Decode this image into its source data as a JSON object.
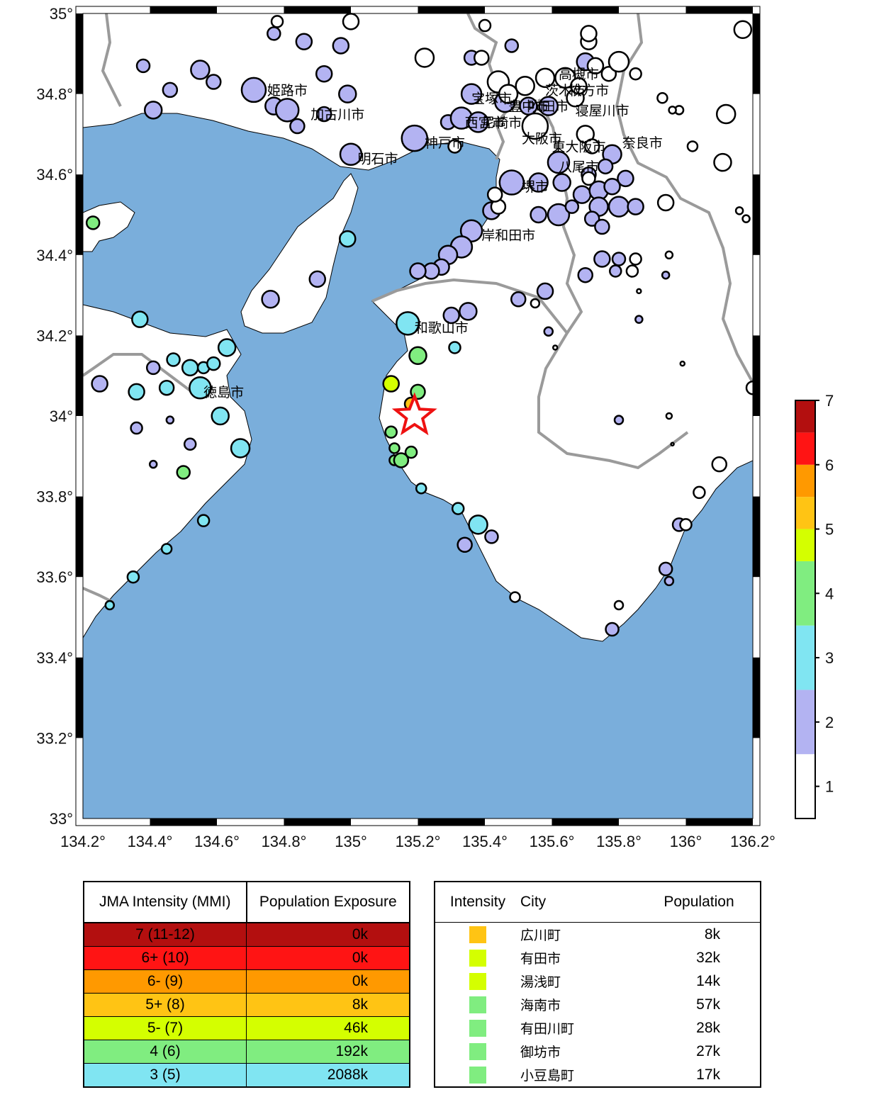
{
  "map": {
    "lon_ticks": [
      "134.2°",
      "134.4°",
      "134.6°",
      "134.8°",
      "135°",
      "135.2°",
      "135.4°",
      "135.6°",
      "135.8°",
      "136°",
      "136.2°"
    ],
    "lat_ticks": [
      "35°",
      "34.8°",
      "34.6°",
      "34.4°",
      "34.2°",
      "34°",
      "33.8°",
      "33.6°",
      "33.4°",
      "33.2°",
      "33°"
    ],
    "lon_range": [
      134.2,
      136.2
    ],
    "lat_range": [
      33.0,
      35.0
    ],
    "epicenter": {
      "lon": 135.19,
      "lat": 34.0
    },
    "water_color": "#7aaedb",
    "land_color": "#ffffff",
    "cities": [
      {
        "name": "姫路市",
        "lon": 134.75,
        "lat": 34.81
      },
      {
        "name": "加古川市",
        "lon": 134.88,
        "lat": 34.75
      },
      {
        "name": "明石市",
        "lon": 135.02,
        "lat": 34.64
      },
      {
        "name": "神戸市",
        "lon": 135.22,
        "lat": 34.68
      },
      {
        "name": "宝塚市",
        "lon": 135.36,
        "lat": 34.79
      },
      {
        "name": "豊中市",
        "lon": 135.47,
        "lat": 34.77
      },
      {
        "name": "西宮市",
        "lon": 135.34,
        "lat": 34.73
      },
      {
        "name": "尼崎市",
        "lon": 135.39,
        "lat": 34.73
      },
      {
        "name": "吹田市",
        "lon": 135.53,
        "lat": 34.77
      },
      {
        "name": "茨木市",
        "lon": 135.58,
        "lat": 34.81
      },
      {
        "name": "高槻市",
        "lon": 135.62,
        "lat": 34.85
      },
      {
        "name": "枚方市",
        "lon": 135.65,
        "lat": 34.81
      },
      {
        "name": "寝屋川市",
        "lon": 135.67,
        "lat": 34.76
      },
      {
        "name": "大阪市",
        "lon": 135.51,
        "lat": 34.69
      },
      {
        "name": "東大阪市",
        "lon": 135.6,
        "lat": 34.67
      },
      {
        "name": "奈良市",
        "lon": 135.81,
        "lat": 34.68
      },
      {
        "name": "八尾市",
        "lon": 135.62,
        "lat": 34.62
      },
      {
        "name": "堺市",
        "lon": 135.51,
        "lat": 34.57
      },
      {
        "name": "岸和田市",
        "lon": 135.39,
        "lat": 34.45
      },
      {
        "name": "和歌山市",
        "lon": 135.19,
        "lat": 34.22
      },
      {
        "name": "徳島市",
        "lon": 134.56,
        "lat": 34.06
      }
    ],
    "stations": [
      {
        "lon": 134.38,
        "lat": 34.87,
        "r": 9,
        "c": 2
      },
      {
        "lon": 134.55,
        "lat": 34.86,
        "r": 13,
        "c": 2
      },
      {
        "lon": 134.59,
        "lat": 34.83,
        "r": 10,
        "c": 2
      },
      {
        "lon": 134.46,
        "lat": 34.81,
        "r": 10,
        "c": 2
      },
      {
        "lon": 134.41,
        "lat": 34.76,
        "r": 12,
        "c": 2
      },
      {
        "lon": 134.71,
        "lat": 34.81,
        "r": 17,
        "c": 2
      },
      {
        "lon": 134.77,
        "lat": 34.77,
        "r": 12,
        "c": 2
      },
      {
        "lon": 134.81,
        "lat": 34.76,
        "r": 16,
        "c": 2
      },
      {
        "lon": 134.84,
        "lat": 34.72,
        "r": 10,
        "c": 2
      },
      {
        "lon": 134.86,
        "lat": 34.93,
        "r": 11,
        "c": 2
      },
      {
        "lon": 134.77,
        "lat": 34.95,
        "r": 9,
        "c": 2
      },
      {
        "lon": 134.92,
        "lat": 34.85,
        "r": 11,
        "c": 2
      },
      {
        "lon": 134.97,
        "lat": 34.92,
        "r": 11,
        "c": 2
      },
      {
        "lon": 134.99,
        "lat": 34.8,
        "r": 12,
        "c": 2
      },
      {
        "lon": 134.92,
        "lat": 34.75,
        "r": 10,
        "c": 2
      },
      {
        "lon": 135.0,
        "lat": 34.65,
        "r": 15,
        "c": 2
      },
      {
        "lon": 135.19,
        "lat": 34.69,
        "r": 18,
        "c": 2
      },
      {
        "lon": 135.29,
        "lat": 34.73,
        "r": 10,
        "c": 2
      },
      {
        "lon": 135.33,
        "lat": 34.74,
        "r": 15,
        "c": 2
      },
      {
        "lon": 135.36,
        "lat": 34.8,
        "r": 14,
        "c": 2
      },
      {
        "lon": 135.38,
        "lat": 34.73,
        "r": 14,
        "c": 2
      },
      {
        "lon": 135.46,
        "lat": 34.78,
        "r": 14,
        "c": 2
      },
      {
        "lon": 135.53,
        "lat": 34.77,
        "r": 12,
        "c": 2
      },
      {
        "lon": 135.59,
        "lat": 34.77,
        "r": 13,
        "c": 2
      },
      {
        "lon": 135.48,
        "lat": 34.58,
        "r": 17,
        "c": 2
      },
      {
        "lon": 135.56,
        "lat": 34.58,
        "r": 13,
        "c": 2
      },
      {
        "lon": 135.62,
        "lat": 34.63,
        "r": 15,
        "c": 2
      },
      {
        "lon": 135.63,
        "lat": 34.58,
        "r": 12,
        "c": 2
      },
      {
        "lon": 135.62,
        "lat": 34.5,
        "r": 15,
        "c": 2
      },
      {
        "lon": 135.56,
        "lat": 34.5,
        "r": 11,
        "c": 2
      },
      {
        "lon": 135.66,
        "lat": 34.52,
        "r": 9,
        "c": 2
      },
      {
        "lon": 135.69,
        "lat": 34.55,
        "r": 12,
        "c": 2
      },
      {
        "lon": 135.71,
        "lat": 34.6,
        "r": 10,
        "c": 2
      },
      {
        "lon": 135.74,
        "lat": 34.56,
        "r": 13,
        "c": 2
      },
      {
        "lon": 135.78,
        "lat": 34.57,
        "r": 11,
        "c": 2
      },
      {
        "lon": 135.8,
        "lat": 34.52,
        "r": 14,
        "c": 2
      },
      {
        "lon": 135.74,
        "lat": 34.52,
        "r": 13,
        "c": 2
      },
      {
        "lon": 135.72,
        "lat": 34.49,
        "r": 10,
        "c": 2
      },
      {
        "lon": 135.75,
        "lat": 34.47,
        "r": 10,
        "c": 2
      },
      {
        "lon": 135.82,
        "lat": 34.59,
        "r": 11,
        "c": 2
      },
      {
        "lon": 135.85,
        "lat": 34.52,
        "r": 11,
        "c": 2
      },
      {
        "lon": 135.78,
        "lat": 34.65,
        "r": 13,
        "c": 2
      },
      {
        "lon": 135.76,
        "lat": 34.62,
        "r": 10,
        "c": 2
      },
      {
        "lon": 135.7,
        "lat": 34.88,
        "r": 12,
        "c": 2
      },
      {
        "lon": 135.48,
        "lat": 34.92,
        "r": 9,
        "c": 2
      },
      {
        "lon": 135.36,
        "lat": 34.89,
        "r": 10,
        "c": 2
      },
      {
        "lon": 135.42,
        "lat": 34.51,
        "r": 12,
        "c": 2
      },
      {
        "lon": 135.36,
        "lat": 34.46,
        "r": 15,
        "c": 2
      },
      {
        "lon": 135.33,
        "lat": 34.42,
        "r": 15,
        "c": 2
      },
      {
        "lon": 135.29,
        "lat": 34.4,
        "r": 13,
        "c": 2
      },
      {
        "lon": 135.27,
        "lat": 34.37,
        "r": 11,
        "c": 2
      },
      {
        "lon": 135.24,
        "lat": 34.36,
        "r": 11,
        "c": 2
      },
      {
        "lon": 135.5,
        "lat": 34.29,
        "r": 10,
        "c": 2
      },
      {
        "lon": 135.58,
        "lat": 34.31,
        "r": 11,
        "c": 2
      },
      {
        "lon": 135.7,
        "lat": 34.35,
        "r": 10,
        "c": 2
      },
      {
        "lon": 135.75,
        "lat": 34.39,
        "r": 11,
        "c": 2
      },
      {
        "lon": 135.3,
        "lat": 34.25,
        "r": 11,
        "c": 2
      },
      {
        "lon": 135.35,
        "lat": 34.26,
        "r": 12,
        "c": 2
      },
      {
        "lon": 135.2,
        "lat": 34.36,
        "r": 11,
        "c": 2
      },
      {
        "lon": 134.99,
        "lat": 34.44,
        "r": 11,
        "c": 3
      },
      {
        "lon": 134.9,
        "lat": 34.34,
        "r": 11,
        "c": 2
      },
      {
        "lon": 134.76,
        "lat": 34.29,
        "r": 12,
        "c": 2
      },
      {
        "lon": 134.37,
        "lat": 34.24,
        "r": 11,
        "c": 3
      },
      {
        "lon": 134.63,
        "lat": 34.17,
        "r": 12,
        "c": 3
      },
      {
        "lon": 134.47,
        "lat": 34.14,
        "r": 9,
        "c": 3
      },
      {
        "lon": 134.52,
        "lat": 34.12,
        "r": 11,
        "c": 3
      },
      {
        "lon": 134.56,
        "lat": 34.12,
        "r": 8,
        "c": 3
      },
      {
        "lon": 134.59,
        "lat": 34.13,
        "r": 9,
        "c": 3
      },
      {
        "lon": 134.41,
        "lat": 34.12,
        "r": 9,
        "c": 2
      },
      {
        "lon": 134.25,
        "lat": 34.08,
        "r": 11,
        "c": 2
      },
      {
        "lon": 134.36,
        "lat": 34.06,
        "r": 11,
        "c": 3
      },
      {
        "lon": 134.45,
        "lat": 34.07,
        "r": 10,
        "c": 3
      },
      {
        "lon": 134.55,
        "lat": 34.07,
        "r": 15,
        "c": 3
      },
      {
        "lon": 134.61,
        "lat": 34.0,
        "r": 12,
        "c": 3
      },
      {
        "lon": 134.67,
        "lat": 33.92,
        "r": 13,
        "c": 3
      },
      {
        "lon": 134.36,
        "lat": 33.97,
        "r": 8,
        "c": 2
      },
      {
        "lon": 134.46,
        "lat": 33.99,
        "r": 5,
        "c": 2
      },
      {
        "lon": 134.52,
        "lat": 33.93,
        "r": 8,
        "c": 2
      },
      {
        "lon": 134.41,
        "lat": 33.88,
        "r": 5,
        "c": 2
      },
      {
        "lon": 134.5,
        "lat": 33.86,
        "r": 9,
        "c": 4
      },
      {
        "lon": 134.56,
        "lat": 33.74,
        "r": 8,
        "c": 3
      },
      {
        "lon": 134.45,
        "lat": 33.67,
        "r": 7,
        "c": 3
      },
      {
        "lon": 134.35,
        "lat": 33.6,
        "r": 8,
        "c": 3
      },
      {
        "lon": 134.28,
        "lat": 33.53,
        "r": 6,
        "c": 3
      },
      {
        "lon": 134.23,
        "lat": 34.48,
        "r": 9,
        "c": 4
      },
      {
        "lon": 135.17,
        "lat": 34.23,
        "r": 16,
        "c": 3
      },
      {
        "lon": 135.2,
        "lat": 34.15,
        "r": 12,
        "c": 4
      },
      {
        "lon": 135.31,
        "lat": 34.17,
        "r": 8,
        "c": 3
      },
      {
        "lon": 135.12,
        "lat": 34.08,
        "r": 11,
        "c": 5
      },
      {
        "lon": 135.2,
        "lat": 34.06,
        "r": 10,
        "c": 4
      },
      {
        "lon": 135.18,
        "lat": 34.03,
        "r": 9,
        "c": 5.5
      },
      {
        "lon": 135.12,
        "lat": 33.96,
        "r": 8,
        "c": 4
      },
      {
        "lon": 135.13,
        "lat": 33.92,
        "r": 7,
        "c": 4
      },
      {
        "lon": 135.18,
        "lat": 33.91,
        "r": 8,
        "c": 4
      },
      {
        "lon": 135.13,
        "lat": 33.89,
        "r": 7,
        "c": 4
      },
      {
        "lon": 135.15,
        "lat": 33.89,
        "r": 10,
        "c": 4
      },
      {
        "lon": 135.21,
        "lat": 33.82,
        "r": 7,
        "c": 3
      },
      {
        "lon": 135.32,
        "lat": 33.77,
        "r": 8,
        "c": 3
      },
      {
        "lon": 135.38,
        "lat": 33.73,
        "r": 13,
        "c": 3
      },
      {
        "lon": 135.34,
        "lat": 33.68,
        "r": 10,
        "c": 2
      },
      {
        "lon": 135.42,
        "lat": 33.7,
        "r": 9,
        "c": 2
      },
      {
        "lon": 135.59,
        "lat": 34.21,
        "r": 6,
        "c": 2
      },
      {
        "lon": 135.55,
        "lat": 34.28,
        "r": 6,
        "c": 1
      },
      {
        "lon": 135.61,
        "lat": 34.17,
        "r": 3,
        "c": 1
      },
      {
        "lon": 135.86,
        "lat": 34.31,
        "r": 3,
        "c": 1
      },
      {
        "lon": 135.84,
        "lat": 34.36,
        "r": 8,
        "c": 1
      },
      {
        "lon": 135.85,
        "lat": 34.39,
        "r": 8,
        "c": 1
      },
      {
        "lon": 135.8,
        "lat": 34.39,
        "r": 9,
        "c": 2
      },
      {
        "lon": 135.79,
        "lat": 34.36,
        "r": 8,
        "c": 2
      },
      {
        "lon": 135.86,
        "lat": 34.24,
        "r": 5,
        "c": 2
      },
      {
        "lon": 135.94,
        "lat": 34.35,
        "r": 5,
        "c": 2
      },
      {
        "lon": 135.95,
        "lat": 34.4,
        "r": 5,
        "c": 1
      },
      {
        "lon": 135.8,
        "lat": 33.99,
        "r": 6,
        "c": 2
      },
      {
        "lon": 135.95,
        "lat": 34.0,
        "r": 4,
        "c": 1
      },
      {
        "lon": 135.99,
        "lat": 34.13,
        "r": 3,
        "c": 1
      },
      {
        "lon": 135.96,
        "lat": 33.93,
        "r": 2,
        "c": 1
      },
      {
        "lon": 136.2,
        "lat": 34.07,
        "r": 9,
        "c": 1
      },
      {
        "lon": 136.1,
        "lat": 33.88,
        "r": 10,
        "c": 1
      },
      {
        "lon": 136.04,
        "lat": 33.81,
        "r": 8,
        "c": 1
      },
      {
        "lon": 135.98,
        "lat": 33.73,
        "r": 9,
        "c": 2
      },
      {
        "lon": 136.0,
        "lat": 33.73,
        "r": 8,
        "c": 1
      },
      {
        "lon": 135.94,
        "lat": 33.62,
        "r": 9,
        "c": 2
      },
      {
        "lon": 135.95,
        "lat": 33.59,
        "r": 6,
        "c": 2
      },
      {
        "lon": 135.8,
        "lat": 33.53,
        "r": 6,
        "c": 1
      },
      {
        "lon": 135.78,
        "lat": 33.47,
        "r": 9,
        "c": 2
      },
      {
        "lon": 135.49,
        "lat": 33.55,
        "r": 7,
        "c": 1
      },
      {
        "lon": 135.39,
        "lat": 34.89,
        "r": 10,
        "c": 1
      },
      {
        "lon": 135.44,
        "lat": 34.83,
        "r": 15,
        "c": 1
      },
      {
        "lon": 135.47,
        "lat": 34.8,
        "r": 13,
        "c": 1
      },
      {
        "lon": 135.52,
        "lat": 34.82,
        "r": 13,
        "c": 1
      },
      {
        "lon": 135.55,
        "lat": 34.72,
        "r": 18,
        "c": 1
      },
      {
        "lon": 135.58,
        "lat": 34.84,
        "r": 13,
        "c": 1
      },
      {
        "lon": 135.64,
        "lat": 34.84,
        "r": 14,
        "c": 1
      },
      {
        "lon": 135.67,
        "lat": 34.79,
        "r": 12,
        "c": 1
      },
      {
        "lon": 135.7,
        "lat": 34.7,
        "r": 12,
        "c": 1
      },
      {
        "lon": 135.72,
        "lat": 34.67,
        "r": 10,
        "c": 1
      },
      {
        "lon": 135.73,
        "lat": 34.87,
        "r": 11,
        "c": 1
      },
      {
        "lon": 135.77,
        "lat": 34.85,
        "r": 10,
        "c": 1
      },
      {
        "lon": 135.8,
        "lat": 34.88,
        "r": 14,
        "c": 1
      },
      {
        "lon": 135.71,
        "lat": 34.93,
        "r": 11,
        "c": 1
      },
      {
        "lon": 135.71,
        "lat": 34.95,
        "r": 11,
        "c": 1
      },
      {
        "lon": 135.68,
        "lat": 34.82,
        "r": 11,
        "c": 1
      },
      {
        "lon": 135.85,
        "lat": 34.85,
        "r": 8,
        "c": 1
      },
      {
        "lon": 135.93,
        "lat": 34.79,
        "r": 7,
        "c": 1
      },
      {
        "lon": 135.98,
        "lat": 34.76,
        "r": 6,
        "c": 1
      },
      {
        "lon": 135.96,
        "lat": 34.76,
        "r": 5,
        "c": 1
      },
      {
        "lon": 136.02,
        "lat": 34.67,
        "r": 7,
        "c": 1
      },
      {
        "lon": 136.12,
        "lat": 34.75,
        "r": 13,
        "c": 1
      },
      {
        "lon": 136.11,
        "lat": 34.63,
        "r": 12,
        "c": 1
      },
      {
        "lon": 136.16,
        "lat": 34.51,
        "r": 5,
        "c": 1
      },
      {
        "lon": 136.18,
        "lat": 34.49,
        "r": 5,
        "c": 1
      },
      {
        "lon": 135.94,
        "lat": 34.53,
        "r": 11,
        "c": 1
      },
      {
        "lon": 135.71,
        "lat": 34.59,
        "r": 9,
        "c": 1
      },
      {
        "lon": 135.44,
        "lat": 34.52,
        "r": 10,
        "c": 1
      },
      {
        "lon": 135.43,
        "lat": 34.55,
        "r": 10,
        "c": 1
      },
      {
        "lon": 135.22,
        "lat": 34.89,
        "r": 13,
        "c": 1
      },
      {
        "lon": 135.0,
        "lat": 34.98,
        "r": 11,
        "c": 1
      },
      {
        "lon": 134.78,
        "lat": 34.98,
        "r": 8,
        "c": 1
      },
      {
        "lon": 135.4,
        "lat": 34.97,
        "r": 8,
        "c": 1
      },
      {
        "lon": 136.17,
        "lat": 34.96,
        "r": 12,
        "c": 1
      },
      {
        "lon": 135.31,
        "lat": 34.67,
        "r": 9,
        "c": 1
      }
    ]
  },
  "colorbar": {
    "labels": [
      "7",
      "6",
      "5",
      "4",
      "3",
      "2",
      "1"
    ],
    "bands": [
      "#ffffff",
      "#b3b3f2",
      "#80e5f2",
      "#80ed80",
      "#d4ff00",
      "#ffc414",
      "#ff9900",
      "#ff1414",
      "#b30f0f"
    ]
  },
  "exposure": {
    "headers": [
      "JMA Intensity (MMI)",
      "Population Exposure"
    ],
    "rows": [
      {
        "level": "7 (11-12)",
        "pop": "0k",
        "color": "#b30f0f"
      },
      {
        "level": "6+ (10)",
        "pop": "0k",
        "color": "#ff1414"
      },
      {
        "level": "6- (9)",
        "pop": "0k",
        "color": "#ff9900"
      },
      {
        "level": "5+ (8)",
        "pop": "8k",
        "color": "#ffc414"
      },
      {
        "level": "5- (7)",
        "pop": "46k",
        "color": "#d4ff00"
      },
      {
        "level": "4 (6)",
        "pop": "192k",
        "color": "#80ed80"
      },
      {
        "level": "3 (5)",
        "pop": "2088k",
        "color": "#80e5f2"
      }
    ]
  },
  "cities_table": {
    "headers": [
      "Intensity",
      "City",
      "Population"
    ],
    "rows": [
      {
        "city": "広川町",
        "pop": "8k",
        "color": "#ffc414"
      },
      {
        "city": "有田市",
        "pop": "32k",
        "color": "#d4ff00"
      },
      {
        "city": "湯浅町",
        "pop": "14k",
        "color": "#d4ff00"
      },
      {
        "city": "海南市",
        "pop": "57k",
        "color": "#80ed80"
      },
      {
        "city": "有田川町",
        "pop": "28k",
        "color": "#80ed80"
      },
      {
        "city": "御坊市",
        "pop": "27k",
        "color": "#80ed80"
      },
      {
        "city": "小豆島町",
        "pop": "17k",
        "color": "#80ed80"
      }
    ]
  }
}
